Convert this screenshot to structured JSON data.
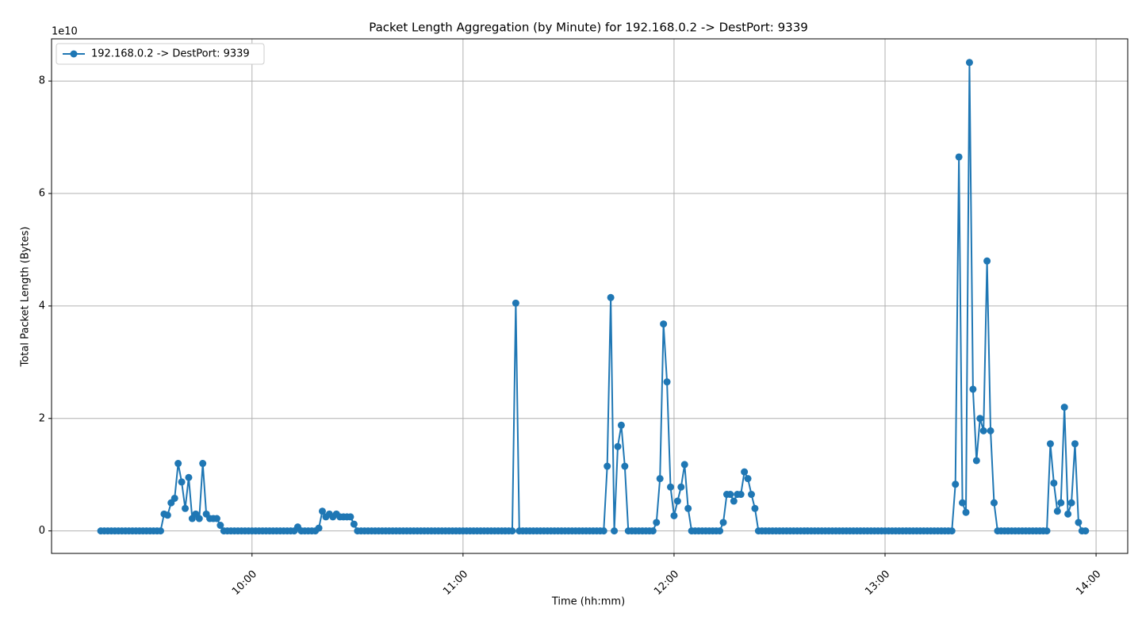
{
  "chart_data": {
    "type": "line",
    "title": "Packet Length Aggregation (by Minute) for 192.168.0.2 -> DestPort: 9339",
    "xlabel": "Time (hh:mm)",
    "ylabel": "Total Packet Length (Bytes)",
    "offset_text": "1e10",
    "grid": true,
    "legend": "upper left",
    "markers": true,
    "xlim": [
      "09:03",
      "14:09"
    ],
    "xticks": [
      "10:00",
      "11:00",
      "12:00",
      "13:00",
      "14:00"
    ],
    "ylim": [
      -0.4,
      8.75
    ],
    "yticks": [
      0,
      2,
      4,
      6,
      8
    ],
    "x": [
      "09:17",
      "09:18",
      "09:19",
      "09:20",
      "09:21",
      "09:22",
      "09:23",
      "09:24",
      "09:25",
      "09:26",
      "09:27",
      "09:28",
      "09:29",
      "09:30",
      "09:31",
      "09:32",
      "09:33",
      "09:34",
      "09:35",
      "09:36",
      "09:37",
      "09:38",
      "09:39",
      "09:40",
      "09:41",
      "09:42",
      "09:43",
      "09:44",
      "09:45",
      "09:46",
      "09:47",
      "09:48",
      "09:49",
      "09:50",
      "09:51",
      "09:52",
      "09:53",
      "09:54",
      "09:55",
      "09:56",
      "09:57",
      "09:58",
      "09:59",
      "10:00",
      "10:01",
      "10:02",
      "10:03",
      "10:04",
      "10:05",
      "10:06",
      "10:07",
      "10:08",
      "10:09",
      "10:10",
      "10:11",
      "10:12",
      "10:13",
      "10:14",
      "10:15",
      "10:16",
      "10:17",
      "10:18",
      "10:19",
      "10:20",
      "10:21",
      "10:22",
      "10:23",
      "10:24",
      "10:25",
      "10:26",
      "10:27",
      "10:28",
      "10:29",
      "10:30",
      "10:31",
      "10:32",
      "10:33",
      "10:34",
      "10:35",
      "10:36",
      "10:37",
      "10:38",
      "10:39",
      "10:40",
      "10:41",
      "10:42",
      "10:43",
      "10:44",
      "10:45",
      "10:46",
      "10:47",
      "10:48",
      "10:49",
      "10:50",
      "10:51",
      "10:52",
      "10:53",
      "10:54",
      "10:55",
      "10:56",
      "10:57",
      "10:58",
      "10:59",
      "11:00",
      "11:01",
      "11:02",
      "11:03",
      "11:04",
      "11:05",
      "11:06",
      "11:07",
      "11:08",
      "11:09",
      "11:10",
      "11:11",
      "11:12",
      "11:13",
      "11:14",
      "11:15",
      "11:16",
      "11:17",
      "11:18",
      "11:19",
      "11:20",
      "11:21",
      "11:22",
      "11:23",
      "11:24",
      "11:25",
      "11:26",
      "11:27",
      "11:28",
      "11:29",
      "11:30",
      "11:31",
      "11:32",
      "11:33",
      "11:34",
      "11:35",
      "11:36",
      "11:37",
      "11:38",
      "11:39",
      "11:40",
      "11:41",
      "11:42",
      "11:43",
      "11:44",
      "11:45",
      "11:46",
      "11:47",
      "11:48",
      "11:49",
      "11:50",
      "11:51",
      "11:52",
      "11:53",
      "11:54",
      "11:55",
      "11:56",
      "11:57",
      "11:58",
      "11:59",
      "12:00",
      "12:01",
      "12:02",
      "12:03",
      "12:04",
      "12:05",
      "12:06",
      "12:07",
      "12:08",
      "12:09",
      "12:10",
      "12:11",
      "12:12",
      "12:13",
      "12:14",
      "12:15",
      "12:16",
      "12:17",
      "12:18",
      "12:19",
      "12:20",
      "12:21",
      "12:22",
      "12:23",
      "12:24",
      "12:25",
      "12:26",
      "12:27",
      "12:28",
      "12:29",
      "12:30",
      "12:31",
      "12:32",
      "12:33",
      "12:34",
      "12:35",
      "12:36",
      "12:37",
      "12:38",
      "12:39",
      "12:40",
      "12:41",
      "12:42",
      "12:43",
      "12:44",
      "12:45",
      "12:46",
      "12:47",
      "12:48",
      "12:49",
      "12:50",
      "12:51",
      "12:52",
      "12:53",
      "12:54",
      "12:55",
      "12:56",
      "12:57",
      "12:58",
      "12:59",
      "13:00",
      "13:01",
      "13:02",
      "13:03",
      "13:04",
      "13:05",
      "13:06",
      "13:07",
      "13:08",
      "13:09",
      "13:10",
      "13:11",
      "13:12",
      "13:13",
      "13:14",
      "13:15",
      "13:16",
      "13:17",
      "13:18",
      "13:19",
      "13:20",
      "13:21",
      "13:22",
      "13:23",
      "13:24",
      "13:25",
      "13:26",
      "13:27",
      "13:28",
      "13:29",
      "13:30",
      "13:31",
      "13:32",
      "13:33",
      "13:34",
      "13:35",
      "13:36",
      "13:37",
      "13:38",
      "13:39",
      "13:40",
      "13:41",
      "13:42",
      "13:43",
      "13:44",
      "13:45",
      "13:46",
      "13:47",
      "13:48",
      "13:49",
      "13:50",
      "13:51",
      "13:52",
      "13:53",
      "13:54",
      "13:55",
      "13:56",
      "13:57"
    ],
    "series": [
      {
        "name": "192.168.0.2 -> DestPort: 9339",
        "color": "#1f77b4",
        "values": [
          0,
          0,
          0,
          0,
          0,
          0,
          0,
          0,
          0,
          0,
          0,
          0,
          0,
          0,
          0,
          0,
          0,
          0,
          0.3,
          0.28,
          0.5,
          0.58,
          1.2,
          0.87,
          0.4,
          0.95,
          0.22,
          0.3,
          0.22,
          1.2,
          0.3,
          0.22,
          0.22,
          0.22,
          0.1,
          0,
          0,
          0,
          0,
          0,
          0,
          0,
          0,
          0,
          0,
          0,
          0,
          0,
          0,
          0,
          0,
          0,
          0,
          0,
          0,
          0,
          0.07,
          0,
          0,
          0,
          0,
          0,
          0.05,
          0.35,
          0.25,
          0.3,
          0.25,
          0.3,
          0.25,
          0.25,
          0.25,
          0.25,
          0.12,
          0,
          0,
          0,
          0,
          0,
          0,
          0,
          0,
          0,
          0,
          0,
          0,
          0,
          0,
          0,
          0,
          0,
          0,
          0,
          0,
          0,
          0,
          0,
          0,
          0,
          0,
          0,
          0,
          0,
          0,
          0,
          0,
          0,
          0,
          0,
          0,
          0,
          0,
          0,
          0,
          0,
          0,
          0,
          0,
          0,
          4.05,
          0,
          0,
          0,
          0,
          0,
          0,
          0,
          0,
          0,
          0,
          0,
          0,
          0,
          0,
          0,
          0,
          0,
          0,
          0,
          0,
          0,
          0,
          0,
          0,
          0,
          1.15,
          4.15,
          0,
          1.5,
          1.88,
          1.15,
          0,
          0,
          0,
          0,
          0,
          0,
          0,
          0,
          0.15,
          0.93,
          3.68,
          2.65,
          0.78,
          0.27,
          0.53,
          0.78,
          1.18,
          0.4,
          0,
          0,
          0,
          0,
          0,
          0,
          0,
          0,
          0,
          0.15,
          0.65,
          0.65,
          0.53,
          0.65,
          0.65,
          1.05,
          0.93,
          0.65,
          0.4,
          0,
          0,
          0,
          0,
          0,
          0,
          0,
          0,
          0,
          0,
          0,
          0,
          0,
          0,
          0,
          0,
          0,
          0,
          0,
          0,
          0,
          0,
          0,
          0,
          0,
          0,
          0,
          0,
          0,
          0,
          0,
          0,
          0,
          0,
          0,
          0,
          0,
          0,
          0,
          0,
          0,
          0,
          0,
          0,
          0,
          0,
          0,
          0,
          0,
          0,
          0,
          0,
          0,
          0,
          0,
          0,
          0.83,
          6.65,
          0.5,
          0.33,
          8.33,
          2.52,
          1.25,
          2.0,
          1.78,
          4.8,
          1.78,
          0.5,
          0,
          0,
          0,
          0,
          0,
          0,
          0,
          0,
          0,
          0,
          0,
          0,
          0,
          0,
          0,
          1.55,
          0.85,
          0.35,
          0.5,
          2.2,
          0.3,
          0.5,
          1.55,
          0.15,
          0,
          0
        ]
      }
    ]
  }
}
